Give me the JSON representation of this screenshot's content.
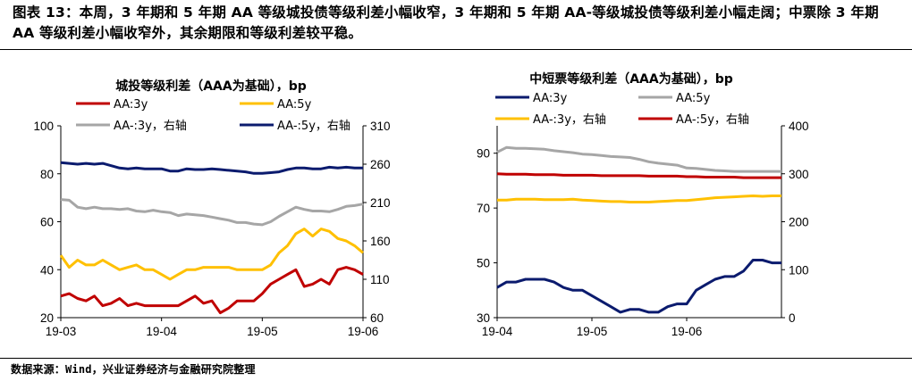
{
  "figure": {
    "title": "图表 13：本周，3 年期和 5 年期 AA 等级城投债等级利差小幅收窄，3 年期和 5 年期 AA-等级城投债等级利差小幅走阔；中票除 3 年期 AA 等级利差小幅收窄外，其余期限和等级利差较平稳。",
    "source": "数据来源：Wind，兴业证券经济与金融研究院整理"
  },
  "chart_data": [
    {
      "type": "line",
      "title": "城投等级利差（AAA为基础），bp",
      "x_labels": [
        "19-03",
        "19-04",
        "19-05",
        "19-06"
      ],
      "x_range": [
        0,
        36
      ],
      "y_left": {
        "ticks": [
          "20",
          "40",
          "60",
          "80",
          "100"
        ],
        "range": [
          20,
          100
        ]
      },
      "y_right": {
        "ticks": [
          "60",
          "110",
          "160",
          "210",
          "260",
          "310"
        ],
        "range": [
          60,
          310
        ]
      },
      "legend_position": "top",
      "series": [
        {
          "name": "AA:3y",
          "axis": "left",
          "color": "#c00000",
          "width": 3,
          "values": [
            29,
            30,
            28,
            27,
            29,
            25,
            26,
            28,
            25,
            26,
            25,
            25,
            25,
            25,
            25,
            27,
            29,
            26,
            27,
            22,
            24,
            27,
            27,
            27,
            30,
            34,
            36,
            38,
            40,
            33,
            34,
            36,
            34,
            40,
            41,
            40,
            38
          ]
        },
        {
          "name": "AA:5y",
          "axis": "left",
          "color": "#ffc000",
          "width": 3,
          "values": [
            46,
            41,
            44,
            42,
            42,
            44,
            42,
            40,
            41,
            42,
            40,
            40,
            38,
            36,
            38,
            40,
            40,
            41,
            41,
            41,
            41,
            40,
            40,
            40,
            40,
            42,
            47,
            50,
            55,
            57,
            54,
            57,
            56,
            53,
            52,
            50,
            47
          ]
        },
        {
          "name": "AA-:3y，右轴",
          "axis": "right",
          "color": "#a6a6a6",
          "width": 3,
          "values": [
            214,
            213,
            204,
            202,
            204,
            202,
            202,
            201,
            202,
            199,
            198,
            200,
            198,
            197,
            193,
            195,
            194,
            193,
            191,
            189,
            187,
            184,
            184,
            182,
            181,
            185,
            192,
            198,
            204,
            201,
            199,
            199,
            198,
            201,
            205,
            206,
            208
          ]
        },
        {
          "name": "AA-:5y，右轴",
          "axis": "right",
          "color": "#0b1b6e",
          "width": 3,
          "values": [
            262,
            261,
            260,
            261,
            260,
            261,
            258,
            255,
            254,
            255,
            254,
            254,
            254,
            251,
            251,
            254,
            253,
            253,
            254,
            253,
            252,
            251,
            250,
            248,
            248,
            249,
            250,
            253,
            255,
            255,
            254,
            254,
            256,
            255,
            256,
            255,
            255
          ]
        }
      ]
    },
    {
      "type": "line",
      "title": "中短票等级利差（AAA为基础），bp",
      "x_labels": [
        "19-04",
        "19-05",
        "19-06"
      ],
      "x_range": [
        0,
        30
      ],
      "y_left": {
        "ticks": [
          "30",
          "50",
          "70",
          "90"
        ],
        "range": [
          30,
          100
        ]
      },
      "y_right": {
        "ticks": [
          "0",
          "100",
          "200",
          "300",
          "400"
        ],
        "range": [
          0,
          400
        ]
      },
      "legend_position": "top",
      "series": [
        {
          "name": "AA:3y",
          "axis": "left",
          "color": "#0b1b6e",
          "width": 3,
          "values": [
            41,
            43,
            43,
            44,
            44,
            44,
            43,
            41,
            40,
            40,
            38,
            36,
            34,
            32,
            33,
            33,
            32,
            32,
            34,
            35,
            35,
            40,
            42,
            44,
            45,
            45,
            47,
            51,
            51,
            50,
            50
          ]
        },
        {
          "name": "AA:5y",
          "axis": "right",
          "color": "#a6a6a6",
          "width": 3,
          "values": [
            345,
            355,
            353,
            353,
            352,
            351,
            348,
            346,
            344,
            341,
            340,
            338,
            336,
            335,
            334,
            330,
            325,
            322,
            320,
            318,
            312,
            311,
            309,
            307,
            306,
            305,
            305,
            305,
            305,
            305,
            305
          ]
        },
        {
          "name": "AA-:3y，右轴",
          "axis": "right",
          "color": "#ffc000",
          "width": 3,
          "values": [
            245,
            245,
            247,
            247,
            247,
            246,
            246,
            246,
            247,
            245,
            244,
            243,
            242,
            242,
            241,
            241,
            241,
            242,
            243,
            244,
            244,
            246,
            248,
            250,
            251,
            252,
            253,
            254,
            253,
            254,
            254
          ]
        },
        {
          "name": "AA-:5y，右轴",
          "axis": "right",
          "color": "#c00000",
          "width": 3,
          "values": [
            300,
            299,
            299,
            299,
            298,
            298,
            298,
            297,
            297,
            297,
            297,
            296,
            296,
            296,
            296,
            296,
            295,
            295,
            295,
            295,
            294,
            294,
            293,
            293,
            293,
            293,
            292,
            292,
            292,
            292,
            292
          ]
        }
      ]
    }
  ]
}
